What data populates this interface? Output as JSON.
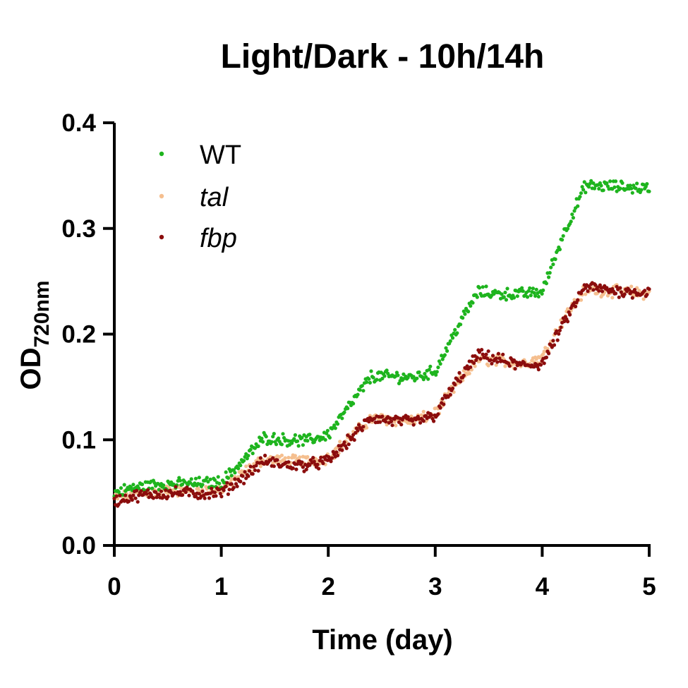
{
  "chart_data": {
    "type": "scatter",
    "title": "Light/Dark - 10h/14h",
    "xlabel": "Time (day)",
    "ylabel_main": "OD",
    "ylabel_sub": "720nm",
    "xlim": [
      0,
      5
    ],
    "ylim": [
      0,
      0.4
    ],
    "x_ticks": [
      "0",
      "1",
      "2",
      "3",
      "4",
      "5"
    ],
    "y_ticks": [
      "0.0",
      "0.1",
      "0.2",
      "0.3",
      "0.4"
    ],
    "grid": false,
    "legend_position": "top-left",
    "series": [
      {
        "name": "WT",
        "color": "#1eb41e",
        "italic": false,
        "x": [
          0,
          0.2,
          0.4,
          0.6,
          0.8,
          1.0,
          1.2,
          1.4,
          1.6,
          1.8,
          2.0,
          2.2,
          2.4,
          2.6,
          2.8,
          3.0,
          3.2,
          3.4,
          3.6,
          3.8,
          4.0,
          4.2,
          4.4,
          4.6,
          4.8,
          5.0
        ],
        "y": [
          0.05,
          0.055,
          0.058,
          0.058,
          0.059,
          0.06,
          0.08,
          0.102,
          0.1,
          0.099,
          0.105,
          0.132,
          0.16,
          0.16,
          0.159,
          0.165,
          0.205,
          0.24,
          0.238,
          0.238,
          0.24,
          0.295,
          0.34,
          0.34,
          0.339,
          0.338
        ]
      },
      {
        "name": "tal",
        "color": "#f5bf8f",
        "italic": true,
        "x": [
          0,
          0.2,
          0.4,
          0.6,
          0.8,
          1.0,
          1.2,
          1.4,
          1.6,
          1.8,
          2.0,
          2.2,
          2.4,
          2.6,
          2.8,
          3.0,
          3.2,
          3.4,
          3.6,
          3.8,
          4.0,
          4.2,
          4.4,
          4.6,
          4.8,
          5.0
        ],
        "y": [
          0.045,
          0.049,
          0.051,
          0.052,
          0.052,
          0.053,
          0.068,
          0.082,
          0.08,
          0.08,
          0.083,
          0.102,
          0.12,
          0.119,
          0.118,
          0.125,
          0.152,
          0.176,
          0.175,
          0.172,
          0.178,
          0.215,
          0.242,
          0.241,
          0.24,
          0.238
        ]
      },
      {
        "name": "fbp",
        "color": "#8b0d0d",
        "italic": true,
        "x": [
          0,
          0.2,
          0.4,
          0.6,
          0.8,
          1.0,
          1.2,
          1.4,
          1.6,
          1.8,
          2.0,
          2.2,
          2.4,
          2.6,
          2.8,
          3.0,
          3.2,
          3.4,
          3.6,
          3.8,
          4.0,
          4.2,
          4.4,
          4.6,
          4.8,
          5.0
        ],
        "y": [
          0.042,
          0.047,
          0.049,
          0.05,
          0.049,
          0.05,
          0.064,
          0.08,
          0.076,
          0.076,
          0.08,
          0.1,
          0.121,
          0.118,
          0.117,
          0.123,
          0.155,
          0.18,
          0.176,
          0.17,
          0.172,
          0.21,
          0.245,
          0.242,
          0.24,
          0.24
        ]
      }
    ]
  }
}
